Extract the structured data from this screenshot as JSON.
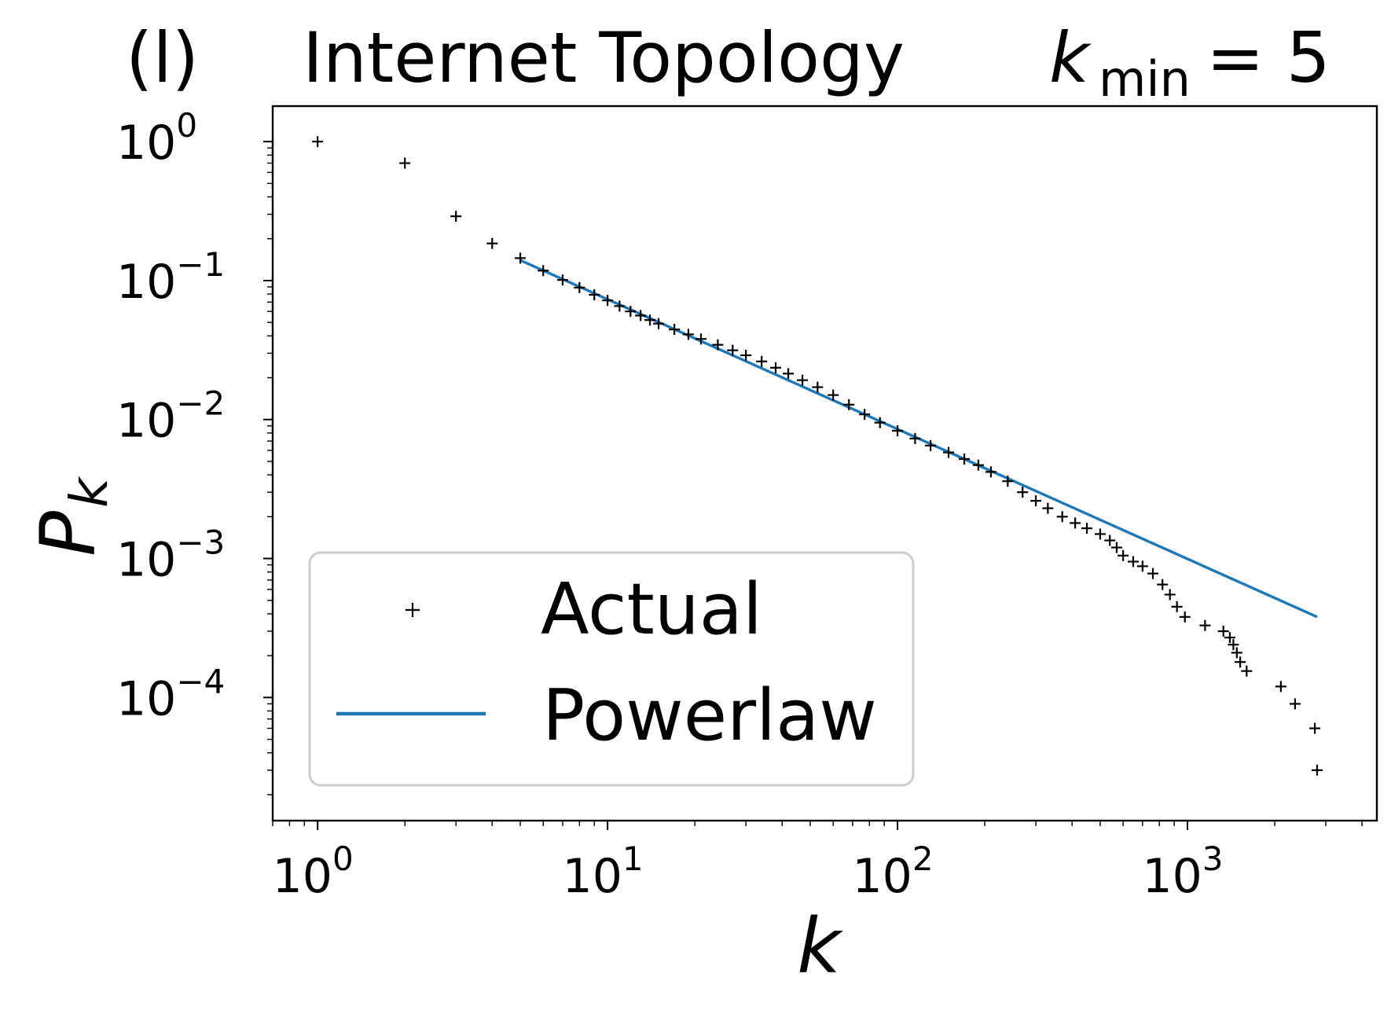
{
  "panel_label": "(l)",
  "chart_data": {
    "type": "scatter",
    "title": "Internet Topology",
    "title_var": "k",
    "title_sub": "min",
    "title_rel": "= 5",
    "xlabel": "k",
    "ylabel": "P",
    "ylabel_sub": "k",
    "xscale": "log",
    "yscale": "log",
    "xlim": [
      0.7,
      4500
    ],
    "ylim": [
      1.3e-05,
      1.8
    ],
    "x_ticks": [
      {
        "base": "10",
        "exp": "0",
        "value": 1
      },
      {
        "base": "10",
        "exp": "1",
        "value": 10
      },
      {
        "base": "10",
        "exp": "2",
        "value": 100
      },
      {
        "base": "10",
        "exp": "3",
        "value": 1000
      }
    ],
    "y_ticks": [
      {
        "base": "10",
        "exp": "0",
        "value": 1
      },
      {
        "base": "10",
        "exp": "−1",
        "value": 0.1
      },
      {
        "base": "10",
        "exp": "−2",
        "value": 0.01
      },
      {
        "base": "10",
        "exp": "−3",
        "value": 0.001
      },
      {
        "base": "10",
        "exp": "−4",
        "value": 0.0001
      }
    ],
    "grid": false,
    "legend_position": "bottom-left",
    "series": [
      {
        "name": "Actual",
        "style": "plus-markers",
        "color": "#000000",
        "points": [
          [
            1,
            1.0
          ],
          [
            2,
            0.7
          ],
          [
            3,
            0.29
          ],
          [
            4,
            0.185
          ],
          [
            5,
            0.145
          ],
          [
            6,
            0.118
          ],
          [
            7,
            0.101
          ],
          [
            8,
            0.089
          ],
          [
            9,
            0.079
          ],
          [
            10,
            0.072
          ],
          [
            11,
            0.0655
          ],
          [
            12,
            0.06
          ],
          [
            13,
            0.056
          ],
          [
            14,
            0.052
          ],
          [
            15,
            0.049
          ],
          [
            17,
            0.0445
          ],
          [
            19,
            0.041
          ],
          [
            21,
            0.038
          ],
          [
            24,
            0.0345
          ],
          [
            27,
            0.0315
          ],
          [
            30,
            0.029
          ],
          [
            34,
            0.0262
          ],
          [
            38,
            0.0236
          ],
          [
            42,
            0.0214
          ],
          [
            47,
            0.0192
          ],
          [
            53,
            0.0171
          ],
          [
            60,
            0.015
          ],
          [
            68,
            0.0128
          ],
          [
            77,
            0.0109
          ],
          [
            87,
            0.0095
          ],
          [
            100,
            0.0083
          ],
          [
            115,
            0.0073
          ],
          [
            130,
            0.0065
          ],
          [
            150,
            0.0058
          ],
          [
            170,
            0.0052
          ],
          [
            190,
            0.0047
          ],
          [
            210,
            0.0042
          ],
          [
            240,
            0.0036
          ],
          [
            270,
            0.003
          ],
          [
            300,
            0.0026
          ],
          [
            330,
            0.0023
          ],
          [
            370,
            0.002
          ],
          [
            410,
            0.0018
          ],
          [
            450,
            0.00165
          ],
          [
            500,
            0.0015
          ],
          [
            540,
            0.00135
          ],
          [
            570,
            0.0012
          ],
          [
            600,
            0.00105
          ],
          [
            650,
            0.00095
          ],
          [
            700,
            0.00088
          ],
          [
            760,
            0.00078
          ],
          [
            820,
            0.00065
          ],
          [
            870,
            0.00055
          ],
          [
            920,
            0.00045
          ],
          [
            980,
            0.00038
          ],
          [
            1150,
            0.00033
          ],
          [
            1330,
            0.0003
          ],
          [
            1400,
            0.00027
          ],
          [
            1440,
            0.00024
          ],
          [
            1480,
            0.00021
          ],
          [
            1520,
            0.00018
          ],
          [
            1600,
            0.000155
          ],
          [
            2100,
            0.00012
          ],
          [
            2350,
            9e-05
          ],
          [
            2750,
            6e-05
          ],
          [
            2800,
            3e-05
          ]
        ]
      },
      {
        "name": "Powerlaw",
        "style": "line",
        "color": "#1f77b4",
        "points": [
          [
            5,
            0.14
          ],
          [
            2800,
            0.00038
          ]
        ]
      }
    ]
  }
}
